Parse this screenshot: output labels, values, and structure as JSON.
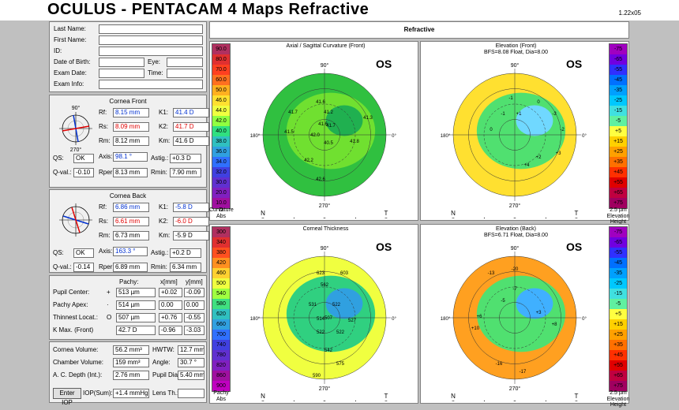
{
  "app": {
    "title": "OCULUS  -  PENTACAM   4 Maps Refractive",
    "version": "1.22x05",
    "header": "Refractive"
  },
  "patient": {
    "labels": [
      "Last Name:",
      "First Name:",
      "ID:",
      "Date of Birth:",
      "Exam Date:",
      "Exam Info:"
    ],
    "eye_label": "Eye:",
    "time_label": "Time:"
  },
  "front": {
    "title": "Cornea Front",
    "rf_l": "Rf:",
    "rf": "8.15 mm",
    "k1_l": "K1:",
    "k1": "41.4 D",
    "rs_l": "Rs:",
    "rs": "8.09 mm",
    "k2_l": "K2:",
    "k2": "41.7 D",
    "rm_l": "Rm:",
    "rm": "8.12 mm",
    "km_l": "Km:",
    "km": "41.6 D",
    "qs_l": "QS:",
    "qs": "OK",
    "axis_l": "Axis:\n(flat)",
    "axis": "98.1 °",
    "astig_l": "Astig.:",
    "astig": "+0.3 D",
    "qval_l": "Q-val.:\n(30°)",
    "qval": "-0.10",
    "rper_l": "Rper:",
    "rper": "8.13 mm",
    "rmin_l": "Rmin:",
    "rmin": "7.90 mm",
    "deg90": "90°",
    "deg0": "0°",
    "deg180": "180°",
    "deg270": "270°"
  },
  "back": {
    "title": "Cornea Back",
    "rf": "6.86 mm",
    "k1": "-5.8 D",
    "rs": "6.61 mm",
    "k2": "-6.0 D",
    "rm": "6.73 mm",
    "km": "-5.9 D",
    "qs": "OK",
    "axis": "163.3 °",
    "astig": "+0.2 D",
    "qval": "-0.14",
    "rper": "6.89 mm",
    "rmin": "6.34 mm"
  },
  "pachy": {
    "h_pachy": "Pachy:",
    "h_x": "x[mm]",
    "h_y": "y[mm]",
    "rows": [
      {
        "label": "Pupil Center:",
        "sym": "+",
        "val": "513 µm",
        "x": "+0.02",
        "y": "-0.09"
      },
      {
        "label": "Pachy Apex:",
        "sym": "·",
        "val": "514 µm",
        "x": "0.00",
        "y": "0.00"
      },
      {
        "label": "Thinnest Locat.:",
        "sym": "O",
        "val": "507 µm",
        "x": "+0.76",
        "y": "-0.55"
      },
      {
        "label": "K Max. (Front)",
        "sym": "",
        "val": "42.7 D",
        "x": "-0.96",
        "y": "-3.03"
      }
    ]
  },
  "misc": {
    "cv_l": "Cornea Volume:",
    "cv": "56.2 mm³",
    "hwtw_l": "HWTW:",
    "hwtw": "12.7 mm",
    "chv_l": "Chamber Volume:",
    "chv": "159 mm³",
    "angle_l": "Angle:",
    "angle": "30.7 °",
    "acd_l": "A. C. Depth (Int.):",
    "acd": "2.76 mm",
    "pd_l": "Pupil Dia:",
    "pd": "5.40 mm",
    "enter_iop": "Enter IOP",
    "iop_l": "IOP(Sum):",
    "iop": "+1.4 mmHg",
    "lens_l": "Lens Th.:"
  },
  "maps": [
    {
      "title": "Axial / Sagittal Curvature (Front)",
      "sub": "",
      "os": "OS",
      "scale_top": "D",
      "cap1": "Curvature",
      "cap2": "Abs",
      "scale": [
        "90.0",
        "80.0",
        "70.0",
        "60.0",
        "50.0",
        "46.0",
        "44.0",
        "42.0",
        "40.0",
        "38.0",
        "36.0",
        "34.0",
        "32.0",
        "30.0",
        "20.0",
        "10.0"
      ],
      "scale_colors": [
        "#b03060",
        "#e03030",
        "#ff4020",
        "#ff7020",
        "#ffb020",
        "#ffe030",
        "#f0ff40",
        "#90ff40",
        "#30e080",
        "#30c0c0",
        "#30a0e0",
        "#3070ff",
        "#4040e0",
        "#6030d0",
        "#8020c0",
        "#a010a0"
      ],
      "map_colors": [
        "#30c040",
        "#70e030",
        "#20b050"
      ],
      "values": [
        [
          "41.6",
          "-5",
          "-40"
        ],
        [
          "41.2",
          "5",
          "-27"
        ],
        [
          "41.7",
          "-40",
          "-27"
        ],
        [
          "41.5",
          "-45",
          "-2"
        ],
        [
          "42.0",
          "-12",
          "2"
        ],
        [
          "41.6",
          "-2",
          "-12"
        ],
        [
          "41.7",
          "8",
          "-10"
        ],
        [
          "41.3",
          "55",
          "-20"
        ],
        [
          "40.5",
          "5",
          "12"
        ],
        [
          "41.8",
          "38",
          "10"
        ],
        [
          "42.2",
          "-20",
          "34"
        ],
        [
          "42.6",
          "-5",
          "58"
        ]
      ]
    },
    {
      "title": "Elevation (Front)",
      "sub": "BFS=8.08 Float, Dia=8.00",
      "os": "OS",
      "scale_top": "",
      "cap1": "2.5 µm",
      "cap2": "Elevation Height",
      "scale": [
        "-75",
        "-65",
        "-55",
        "-45",
        "-35",
        "-25",
        "-15",
        "-5",
        "+5",
        "+15",
        "+25",
        "+35",
        "+45",
        "+55",
        "+65",
        "+75"
      ],
      "scale_colors": [
        "#a000c0",
        "#7000e0",
        "#3030ff",
        "#0070ff",
        "#00a0ff",
        "#00c8ff",
        "#40e0e0",
        "#60f0a0",
        "#ffff40",
        "#ffd000",
        "#ffa000",
        "#ff7000",
        "#ff3000",
        "#e00000",
        "#c00040",
        "#a00060"
      ],
      "map_colors": [
        "#ffe030",
        "#50e070",
        "#70d8ff"
      ],
      "values": [
        [
          "-1",
          "-5",
          "-45"
        ],
        [
          "0",
          "30",
          "-40"
        ],
        [
          "-1",
          "-15",
          "-25"
        ],
        [
          "+1",
          "5",
          "-25"
        ],
        [
          "0",
          "-30",
          "-5"
        ],
        [
          "+2",
          "30",
          "30"
        ],
        [
          "+3",
          "55",
          "25"
        ],
        [
          "+4",
          "15",
          "40"
        ],
        [
          "-2",
          "60",
          "-5"
        ],
        [
          "-3",
          "50",
          "-25"
        ]
      ]
    },
    {
      "title": "Corneal Thickness",
      "sub": "",
      "os": "OS",
      "scale_top": "",
      "cap1": "Pachy",
      "cap2": "Abs",
      "scale": [
        "300",
        "340",
        "380",
        "420",
        "460",
        "500",
        "540",
        "580",
        "620",
        "660",
        "700",
        "740",
        "780",
        "820",
        "860",
        "900"
      ],
      "scale_colors": [
        "#b03060",
        "#e03030",
        "#ff5020",
        "#ff9020",
        "#ffd030",
        "#f0ff40",
        "#a0ff40",
        "#40e080",
        "#30c0c0",
        "#30a0e0",
        "#3070ff",
        "#4040e0",
        "#6030d0",
        "#8020c0",
        "#a010a0",
        "#c000c0"
      ],
      "map_colors": [
        "#f0ff40",
        "#30d080",
        "#30a0e0"
      ],
      "values": [
        [
          "623",
          "-5",
          "-55"
        ],
        [
          "603",
          "25",
          "-55"
        ],
        [
          "562",
          "0",
          "-40"
        ],
        [
          "531",
          "-15",
          "-15"
        ],
        [
          "522",
          "15",
          "-15"
        ],
        [
          "527",
          "35",
          "5"
        ],
        [
          "507",
          "5",
          "2"
        ],
        [
          "514",
          "-5",
          "3"
        ],
        [
          "522",
          "-5",
          "20"
        ],
        [
          "522",
          "20",
          "20"
        ],
        [
          "542",
          "5",
          "43"
        ],
        [
          "575",
          "20",
          "60"
        ],
        [
          "590",
          "-10",
          "75"
        ]
      ]
    },
    {
      "title": "Elevation (Back)",
      "sub": "BFS=6.71 Float, Dia=8.00",
      "os": "OS",
      "scale_top": "",
      "cap1": "2.5 µm",
      "cap2": "Elevation Height",
      "scale": [
        "-75",
        "-65",
        "-55",
        "-45",
        "-35",
        "-25",
        "-15",
        "-5",
        "+5",
        "+15",
        "+25",
        "+35",
        "+45",
        "+55",
        "+65",
        "+75"
      ],
      "scale_colors": [
        "#a000c0",
        "#7000e0",
        "#3030ff",
        "#0070ff",
        "#00a0ff",
        "#00c8ff",
        "#40e0e0",
        "#60f0a0",
        "#ffff40",
        "#ffd000",
        "#ffa000",
        "#ff7000",
        "#ff3000",
        "#e00000",
        "#c00040",
        "#a00060"
      ],
      "map_colors": [
        "#ffa020",
        "#50e070",
        "#40b0ff"
      ],
      "values": [
        [
          "-20",
          "0",
          "-60"
        ],
        [
          "-13",
          "-30",
          "-55"
        ],
        [
          "-7",
          "0",
          "-35"
        ],
        [
          "-5",
          "-15",
          "-20"
        ],
        [
          "+6",
          "-45",
          "0"
        ],
        [
          "+10",
          "-50",
          "15"
        ],
        [
          "+8",
          "50",
          "10"
        ],
        [
          "-16",
          "-20",
          "60"
        ],
        [
          "-17",
          "10",
          "70"
        ],
        [
          "+3",
          "30",
          "-5"
        ]
      ]
    }
  ]
}
